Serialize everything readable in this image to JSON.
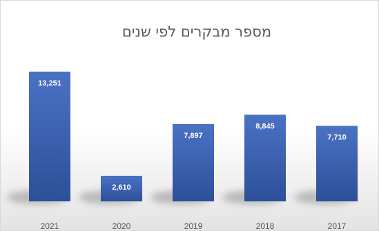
{
  "chart_data": {
    "type": "bar",
    "title": "מספר מבקרים לפי שנים",
    "xlabel": "",
    "ylabel": "",
    "categories": [
      "2021",
      "2020",
      "2019",
      "2018",
      "2017"
    ],
    "values": [
      13251,
      2610,
      7897,
      8845,
      7710
    ],
    "value_labels": [
      "13,251",
      "2,610",
      "7,897",
      "8,845",
      "7,710"
    ],
    "ylim": [
      0,
      15000
    ],
    "grid": false,
    "legend": "none",
    "colors": {
      "bar_top": "#4a72c4",
      "bar_bottom": "#2e4f98",
      "value_text": "#ffffff",
      "title_text": "#595959",
      "tick_text": "#595959",
      "background_top": "#ffffff",
      "background_bottom": "#e3e3e3"
    }
  }
}
